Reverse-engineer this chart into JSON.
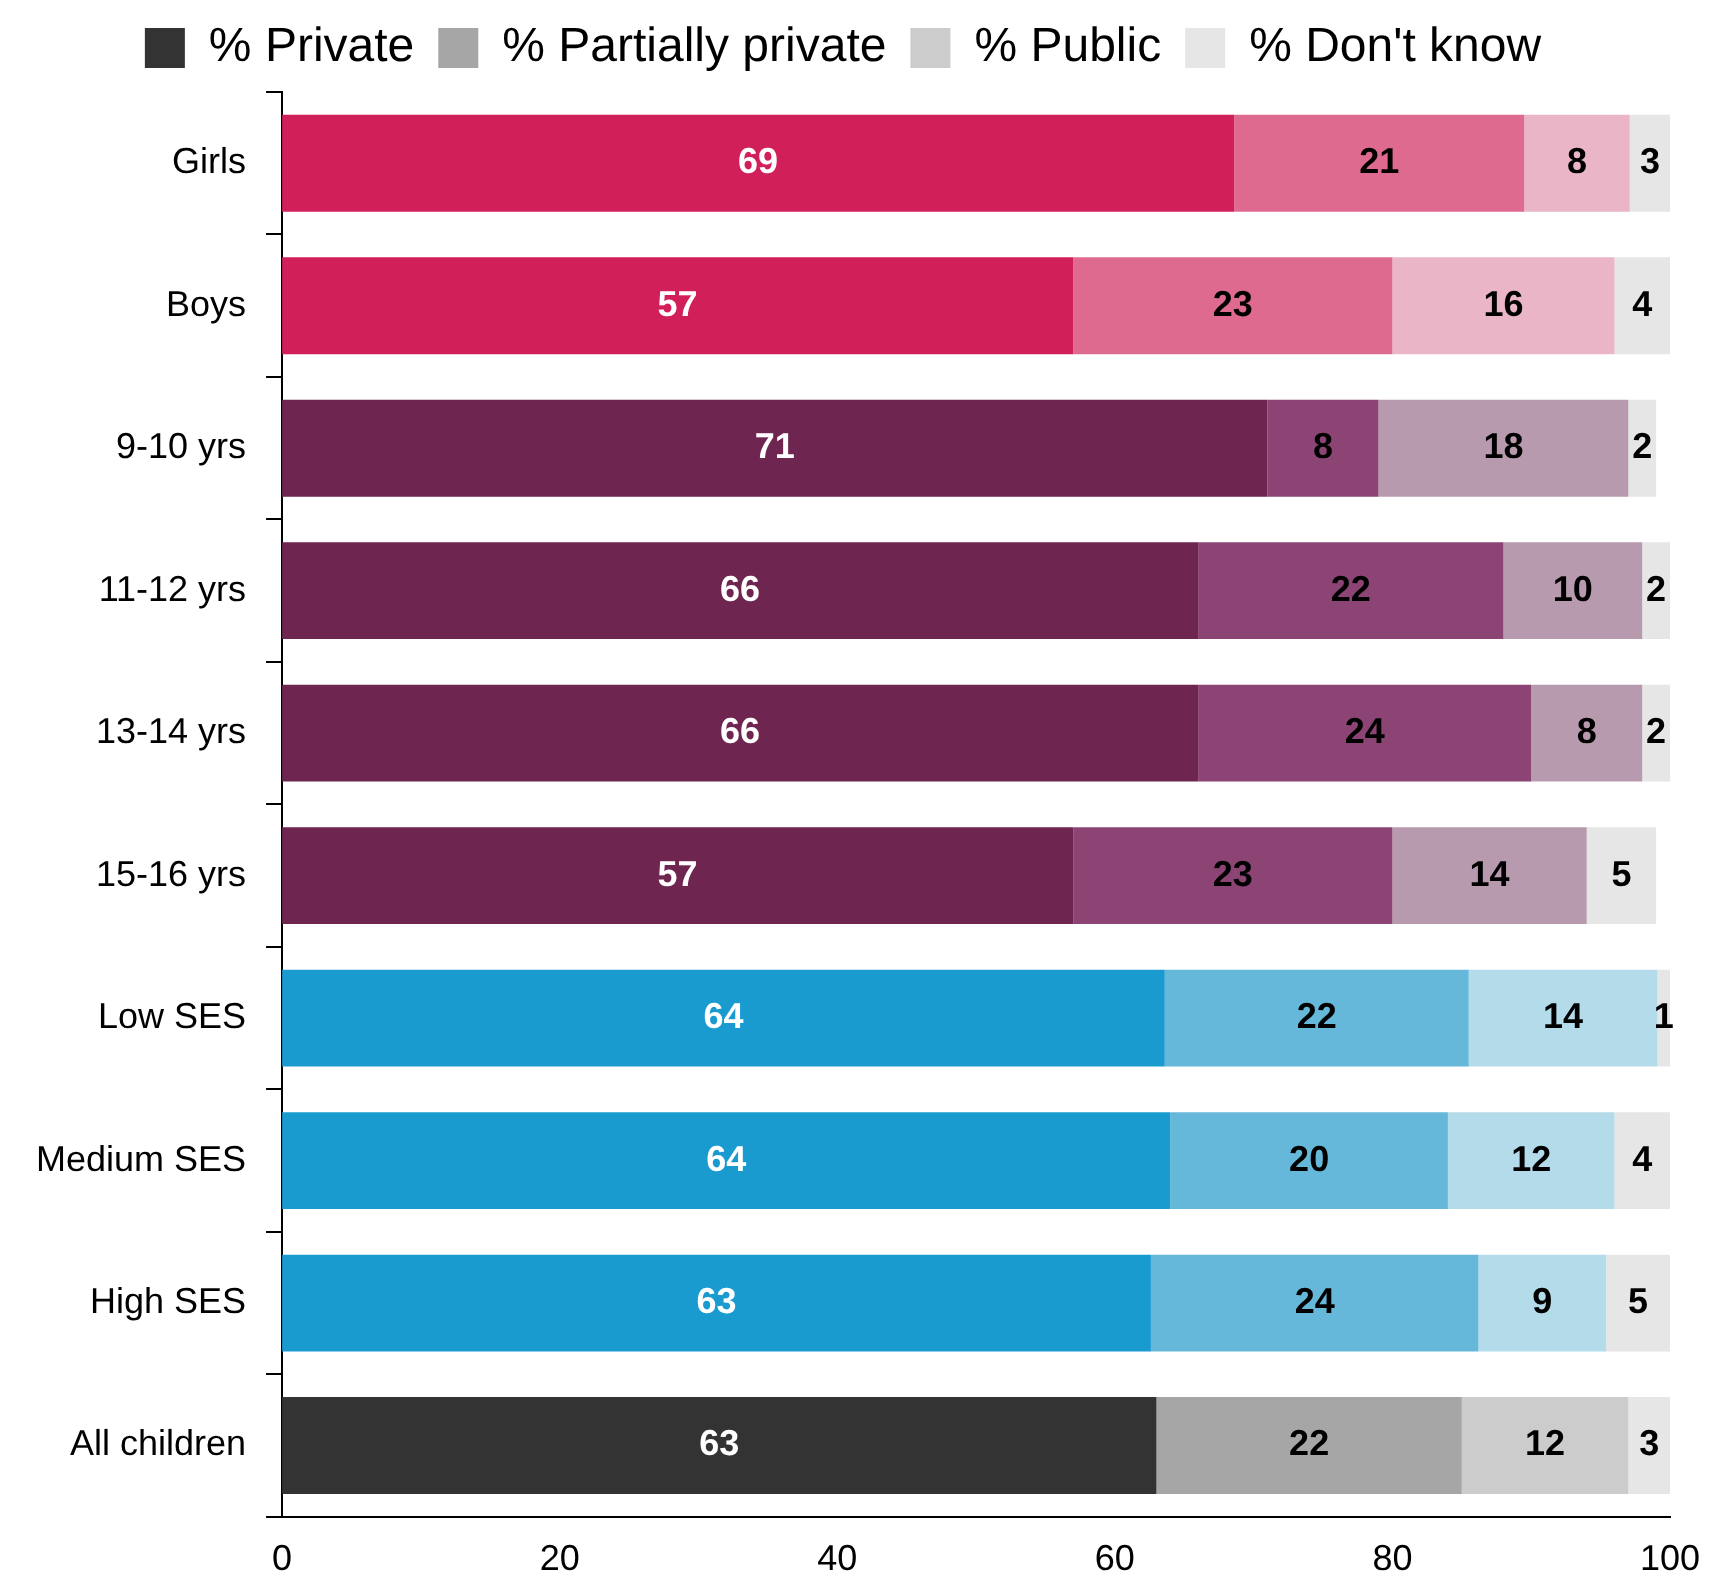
{
  "chart_data": {
    "type": "bar",
    "orientation": "horizontal",
    "stacked": true,
    "legend": "top",
    "grid": false,
    "categories": [
      "Girls",
      "Boys",
      "9-10 yrs",
      "11-12 yrs",
      "13-14 yrs",
      "15-16 yrs",
      "Low SES",
      "Medium SES",
      "High SES",
      "All children"
    ],
    "xlim": [
      0,
      100
    ],
    "xticks": [
      0,
      20,
      40,
      60,
      80,
      100
    ],
    "series": [
      {
        "name": "% Private",
        "color": "#333333",
        "colors": [
          "#d11f5a",
          "#d11f5a",
          "#6e2550",
          "#6e2550",
          "#6e2550",
          "#6e2550",
          "#1a9bd0",
          "#1a9bd0",
          "#1a9bd0",
          "#333333"
        ],
        "values": [
          68.6,
          57,
          71,
          66,
          66,
          57,
          63.6,
          64,
          62.6,
          63
        ],
        "value_labels": [
          "69",
          "57",
          "71",
          "66",
          "66",
          "57",
          "64",
          "64",
          "63",
          "63"
        ]
      },
      {
        "name": "% Partially private",
        "color": "#a6a6a6",
        "colors": [
          "#de6b8f",
          "#de6b8f",
          "#8c4475",
          "#8c4475",
          "#8c4475",
          "#8c4475",
          "#66b8db",
          "#66b8db",
          "#66b8db",
          "#a6a6a6"
        ],
        "values": [
          20.9,
          23,
          8,
          22,
          24,
          23,
          21.9,
          20,
          23.6,
          22
        ],
        "value_labels": [
          "21",
          "23",
          "8",
          "22",
          "24",
          "23",
          "22",
          "20",
          "24",
          "22"
        ]
      },
      {
        "name": "% Public",
        "color": "#cccccc",
        "colors": [
          "#e9b5c7",
          "#e9b5c7",
          "#b89aae",
          "#b89aae",
          "#b89aae",
          "#b89aae",
          "#b3dbe9",
          "#b3dbe9",
          "#b3dbe9",
          "#cccccc"
        ],
        "values": [
          7.6,
          16,
          18,
          10,
          8,
          14,
          13.6,
          12,
          9.2,
          12
        ],
        "value_labels": [
          "8",
          "16",
          "18",
          "10",
          "8",
          "14",
          "14",
          "12",
          "9",
          "12"
        ]
      },
      {
        "name": "% Don't know",
        "color": "#e6e6e6",
        "colors": [
          "#e6e6e6",
          "#e6e6e6",
          "#e6e6e6",
          "#e6e6e6",
          "#e6e6e6",
          "#e6e6e6",
          "#e6e6e6",
          "#e6e6e6",
          "#e6e6e6",
          "#e6e6e6"
        ],
        "values": [
          2.9,
          4,
          2,
          2,
          2,
          5,
          0.9,
          4,
          4.6,
          3
        ],
        "value_labels": [
          "3",
          "4",
          "2",
          "2",
          "2",
          "5",
          "1",
          "4",
          "5",
          "3"
        ]
      }
    ]
  }
}
